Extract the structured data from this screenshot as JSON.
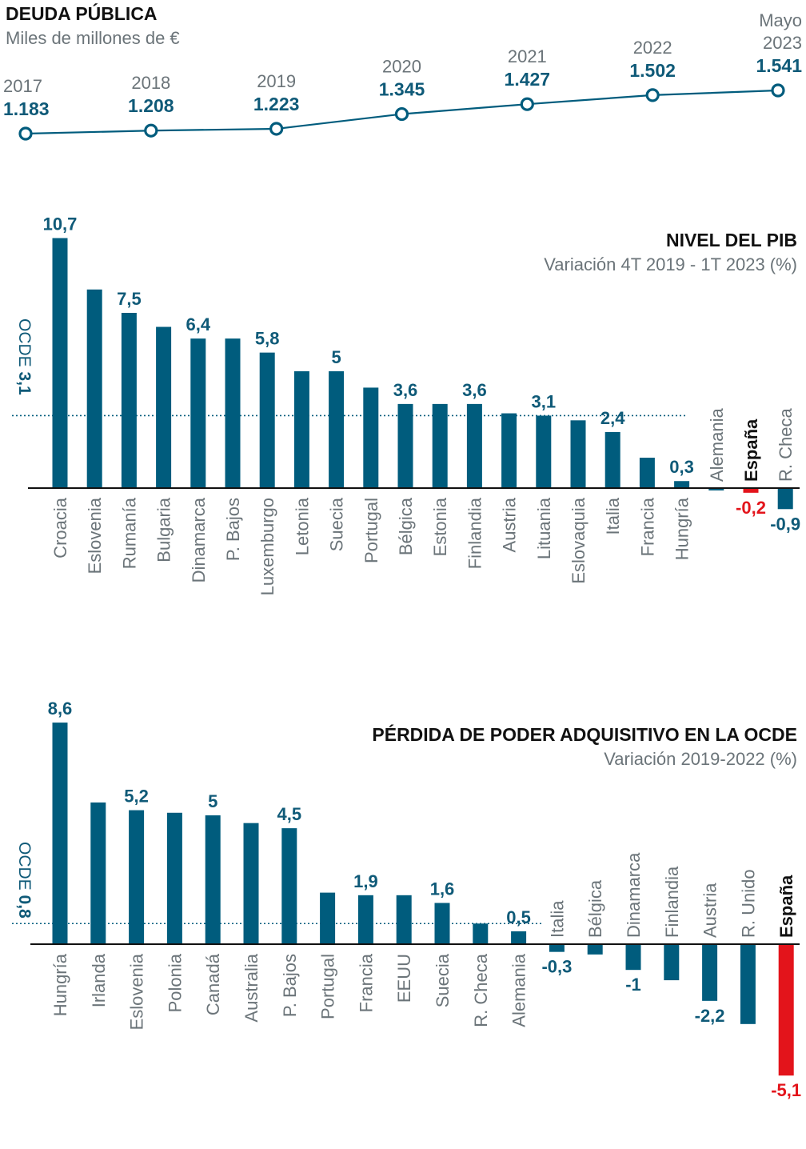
{
  "colors": {
    "bar": "#005c7d",
    "highlight": "#e3141b",
    "text": "#6b7479",
    "value": "#0f5a78",
    "title": "#111111"
  },
  "chart_data": [
    {
      "type": "line",
      "title": "DEUDA PÚBLICA",
      "subtitle": "Miles de millones de €",
      "x": [
        "2017",
        "2018",
        "2019",
        "2020",
        "2021",
        "2022",
        "Mayo 2023"
      ],
      "values": [
        1183,
        1208,
        1223,
        1345,
        1427,
        1502,
        1541
      ],
      "labels": [
        "1.183",
        "1.208",
        "1.223",
        "1.345",
        "1.427",
        "1.502",
        "1.541"
      ]
    },
    {
      "type": "bar",
      "title": "NIVEL DEL PIB",
      "subtitle": "Variación 4T 2019 - 1T 2023 (%)",
      "categories": [
        "Croacia",
        "Eslovenia",
        "Rumanía",
        "Bulgaria",
        "Dinamarca",
        "P. Bajos",
        "Luxemburgo",
        "Letonia",
        "Suecia",
        "Portugal",
        "Bélgica",
        "Estonia",
        "Finlandia",
        "Austria",
        "Lituania",
        "Eslovaquia",
        "Italia",
        "Francia",
        "Hungría",
        "Alemania",
        "España",
        "R. Checa"
      ],
      "values": [
        10.7,
        8.5,
        7.5,
        6.9,
        6.4,
        6.4,
        5.8,
        5.0,
        5.0,
        4.3,
        3.6,
        3.6,
        3.6,
        3.2,
        3.1,
        2.9,
        2.4,
        1.3,
        0.3,
        -0.1,
        -0.2,
        -0.9
      ],
      "value_labels": [
        "10,7",
        "",
        "7,5",
        "",
        "6,4",
        "",
        "5,8",
        "",
        "5",
        "",
        "3,6",
        "",
        "3,6",
        "",
        "3,1",
        "",
        "2,4",
        "",
        "0,3",
        "",
        "-0,2",
        "-0,9"
      ],
      "highlight": "España",
      "reference": {
        "label": "OCDE",
        "value": 3.1,
        "text": "3,1"
      }
    },
    {
      "type": "bar",
      "title": "PÉRDIDA DE PODER ADQUISITIVO EN LA OCDE",
      "subtitle": "Variación 2019-2022 (%)",
      "categories": [
        "Hungría",
        "Irlanda",
        "Eslovenia",
        "Polonia",
        "Canadá",
        "Australia",
        "P. Bajos",
        "Portugal",
        "Francia",
        "EEUU",
        "Suecia",
        "R. Checa",
        "Alemania",
        "Italia",
        "Bélgica",
        "Dinamarca",
        "Finlandia",
        "Austria",
        "R. Unido",
        "España"
      ],
      "values": [
        8.6,
        5.5,
        5.2,
        5.1,
        5.0,
        4.7,
        4.5,
        2.0,
        1.9,
        1.9,
        1.6,
        0.8,
        0.5,
        -0.3,
        -0.4,
        -1.0,
        -1.4,
        -2.2,
        -3.1,
        -5.1
      ],
      "value_labels": [
        "8,6",
        "",
        "5,2",
        "",
        "5",
        "",
        "4,5",
        "",
        "1,9",
        "",
        "1,6",
        "",
        "0,5",
        "-0,3",
        "",
        "-1",
        "",
        "-2,2",
        "",
        "-5,1"
      ],
      "highlight": "España",
      "reference": {
        "label": "OCDE",
        "value": 0.8,
        "text": "0,8"
      }
    }
  ]
}
